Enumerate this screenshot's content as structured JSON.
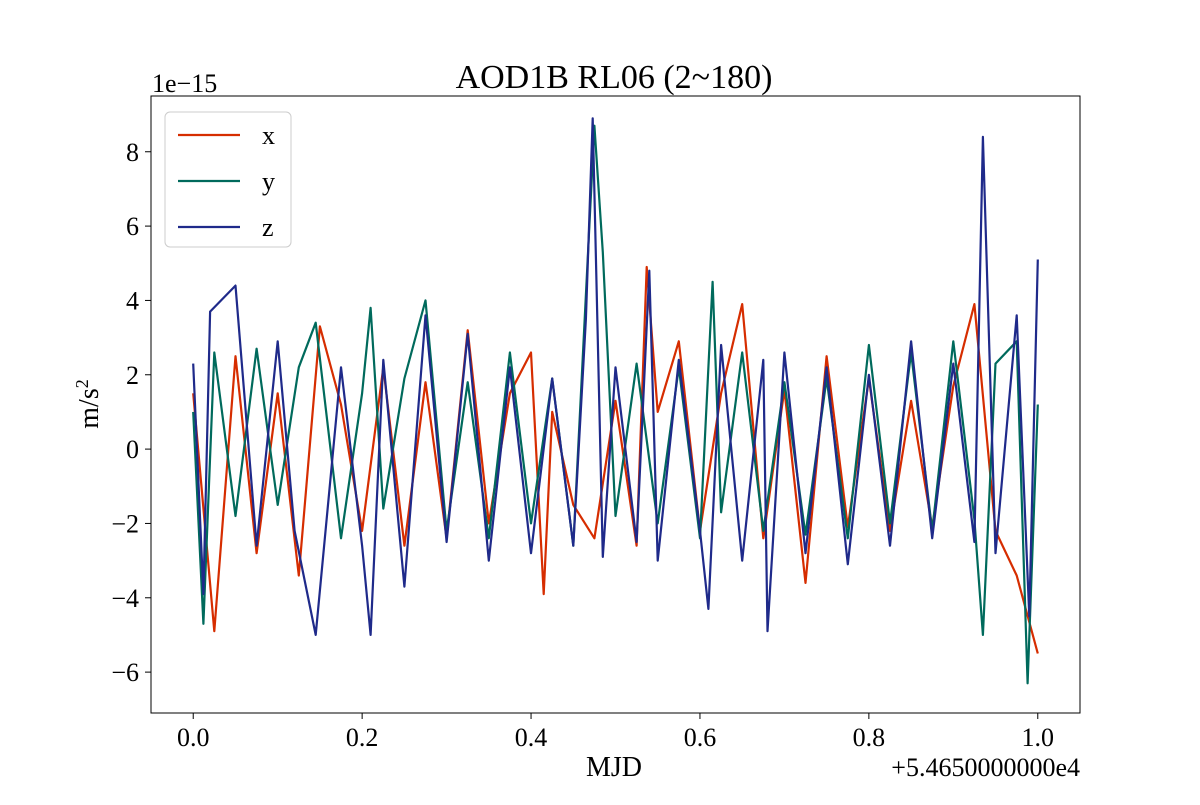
{
  "chart_data": {
    "type": "line",
    "title": "AOD1B RL06 (2~180)",
    "xlabel": "MJD",
    "ylabel": "m/s",
    "ylabel_superscript": "2",
    "y_multiplier": "1e−15",
    "x_offset_label": "+5.4650000000e4",
    "xlim": [
      -0.05,
      1.05
    ],
    "ylim": [
      -7.1,
      9.5
    ],
    "x_ticks": [
      0.0,
      0.2,
      0.4,
      0.6,
      0.8,
      1.0
    ],
    "x_tick_labels": [
      "0.0",
      "0.2",
      "0.4",
      "0.6",
      "0.8",
      "1.0"
    ],
    "y_ticks": [
      -6,
      -4,
      -2,
      0,
      2,
      4,
      6,
      8
    ],
    "y_tick_labels": [
      "−6",
      "−4",
      "−2",
      "0",
      "2",
      "4",
      "6",
      "8"
    ],
    "grid": false,
    "legend_position": "upper-left",
    "series": [
      {
        "name": "x",
        "color": "#d62d00",
        "x": [
          0.0,
          0.025,
          0.05,
          0.075,
          0.1,
          0.125,
          0.15,
          0.175,
          0.2,
          0.225,
          0.25,
          0.275,
          0.3,
          0.325,
          0.35,
          0.375,
          0.4,
          0.415,
          0.425,
          0.45,
          0.475,
          0.5,
          0.525,
          0.537,
          0.55,
          0.575,
          0.6,
          0.625,
          0.65,
          0.675,
          0.7,
          0.725,
          0.75,
          0.775,
          0.8,
          0.825,
          0.85,
          0.875,
          0.9,
          0.925,
          0.95,
          0.975,
          1.0
        ],
        "y": [
          1.5,
          -4.9,
          2.5,
          -2.8,
          1.5,
          -3.4,
          3.3,
          1.2,
          -2.2,
          2.2,
          -2.6,
          1.8,
          -2.4,
          3.2,
          -2.0,
          1.5,
          2.6,
          -3.9,
          1.0,
          -1.5,
          -2.4,
          1.3,
          -2.6,
          4.9,
          1.0,
          2.9,
          -2.2,
          1.5,
          3.9,
          -2.4,
          1.6,
          -3.6,
          2.5,
          -2.1,
          1.9,
          -2.2,
          1.3,
          -2.1,
          1.7,
          3.9,
          -2.2,
          -3.4,
          -5.5
        ]
      },
      {
        "name": "y",
        "color": "#006a5c",
        "x": [
          0.0,
          0.012,
          0.025,
          0.05,
          0.075,
          0.1,
          0.125,
          0.145,
          0.175,
          0.2,
          0.21,
          0.225,
          0.25,
          0.275,
          0.3,
          0.325,
          0.35,
          0.375,
          0.4,
          0.425,
          0.45,
          0.475,
          0.485,
          0.5,
          0.525,
          0.55,
          0.575,
          0.6,
          0.615,
          0.625,
          0.65,
          0.675,
          0.7,
          0.725,
          0.75,
          0.775,
          0.8,
          0.825,
          0.85,
          0.875,
          0.9,
          0.925,
          0.935,
          0.95,
          0.975,
          0.988,
          1.0
        ],
        "y": [
          1.0,
          -4.7,
          2.6,
          -1.8,
          2.7,
          -1.5,
          2.2,
          3.4,
          -2.4,
          1.5,
          3.8,
          -1.6,
          1.9,
          4.0,
          -2.2,
          1.8,
          -2.4,
          2.6,
          -2.0,
          1.9,
          -2.6,
          8.7,
          5.3,
          -1.8,
          2.3,
          -2.0,
          2.2,
          -2.4,
          4.5,
          -1.7,
          2.6,
          -2.2,
          1.8,
          -2.3,
          1.9,
          -2.4,
          2.8,
          -2.0,
          2.6,
          -2.2,
          2.9,
          -1.9,
          -5.0,
          2.3,
          2.9,
          -6.3,
          1.2
        ]
      },
      {
        "name": "z",
        "color": "#1f2a8a",
        "x": [
          0.0,
          0.012,
          0.02,
          0.05,
          0.075,
          0.1,
          0.12,
          0.145,
          0.175,
          0.2,
          0.21,
          0.225,
          0.25,
          0.275,
          0.3,
          0.325,
          0.35,
          0.375,
          0.4,
          0.425,
          0.45,
          0.465,
          0.473,
          0.485,
          0.5,
          0.525,
          0.54,
          0.55,
          0.575,
          0.6,
          0.61,
          0.625,
          0.65,
          0.675,
          0.68,
          0.7,
          0.725,
          0.75,
          0.775,
          0.8,
          0.825,
          0.85,
          0.875,
          0.9,
          0.925,
          0.935,
          0.95,
          0.975,
          0.99,
          1.0
        ],
        "y": [
          2.3,
          -3.9,
          3.7,
          4.4,
          -2.6,
          2.9,
          -2.2,
          -5.0,
          2.2,
          -2.6,
          -5.0,
          2.4,
          -3.7,
          3.6,
          -2.5,
          3.1,
          -3.0,
          2.2,
          -2.8,
          1.9,
          -2.6,
          3.5,
          8.9,
          -2.9,
          2.2,
          -2.5,
          4.8,
          -3.0,
          2.4,
          -2.2,
          -4.3,
          2.8,
          -3.0,
          2.4,
          -4.9,
          2.6,
          -2.8,
          2.2,
          -3.1,
          2.0,
          -2.6,
          2.9,
          -2.4,
          2.3,
          -2.5,
          8.4,
          -2.8,
          3.6,
          -4.5,
          5.1
        ]
      }
    ]
  }
}
